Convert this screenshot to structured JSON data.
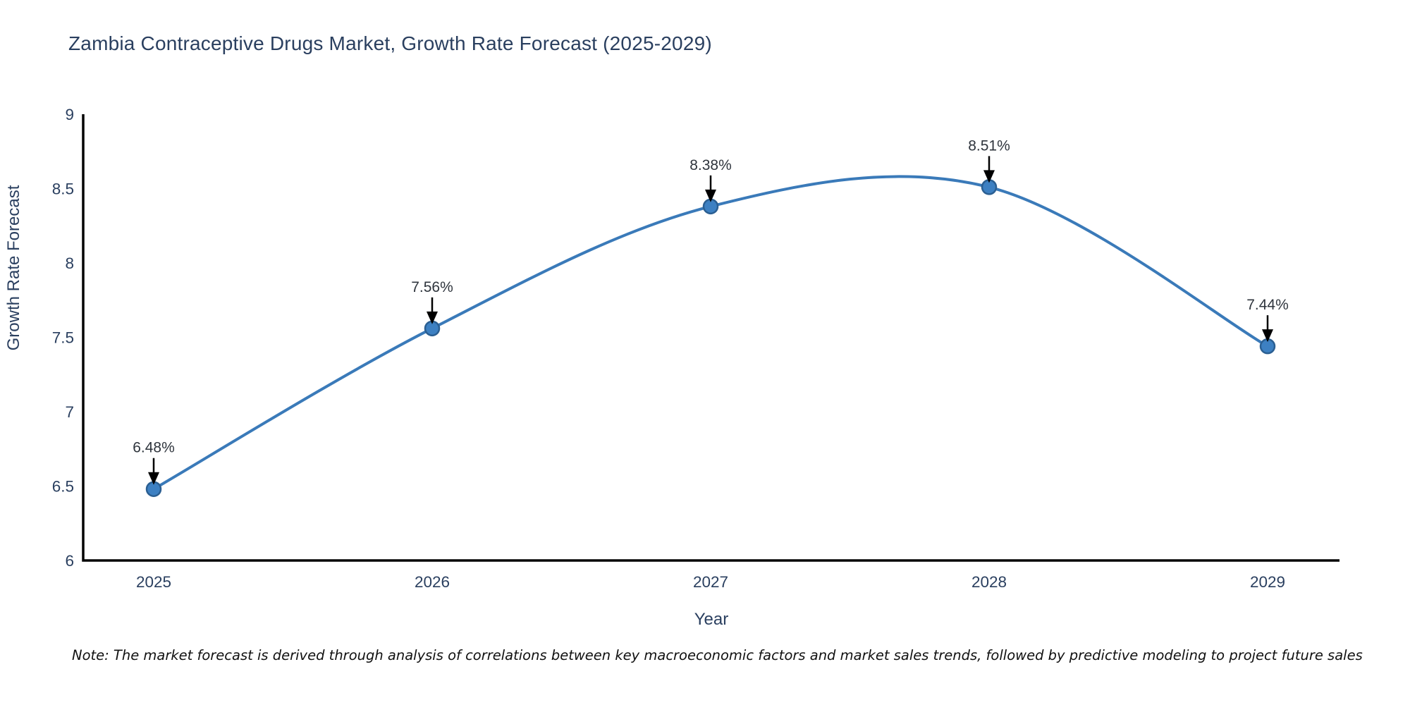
{
  "page": {
    "background": "#ffffff"
  },
  "note": "Note: The market forecast is derived through analysis of correlations between key macroeconomic factors and market sales trends, followed by predictive modeling to project future sales",
  "colors": {
    "line": "#3a7ab9",
    "marker_fill": "#3d80c2",
    "marker_edge": "#2b5f92",
    "axis": "#000000",
    "title_text": "#2a3f5f",
    "tick_text": "#2a3f5f",
    "annotation_text": "#2f353d",
    "arrow": "#000000",
    "note_text": "#111111"
  },
  "chart_data": {
    "type": "line",
    "title": "Zambia Contraceptive Drugs Market, Growth Rate Forecast (2025-2029)",
    "xlabel": "Year",
    "ylabel": "Growth Rate Forecast",
    "categories": [
      "2025",
      "2026",
      "2027",
      "2028",
      "2029"
    ],
    "values": [
      6.48,
      7.56,
      8.38,
      8.51,
      7.44
    ],
    "point_labels": [
      "6.48%",
      "7.56%",
      "8.38%",
      "8.51%",
      "7.44%"
    ],
    "ylim": [
      6,
      9
    ],
    "yticks": [
      "6",
      "6.5",
      "7",
      "7.5",
      "8",
      "8.5",
      "9"
    ],
    "grid": false,
    "legend": "none",
    "line_shape": "spline",
    "markers": "circle",
    "annotation_style": "value label with downward arrow to each point"
  }
}
